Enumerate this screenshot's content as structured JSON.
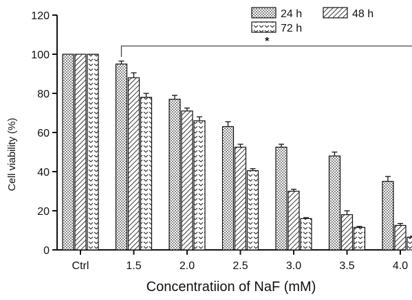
{
  "chart_data": {
    "type": "bar",
    "title": "",
    "xlabel": "Concentratiion of NaF (mM)",
    "ylabel": "Cell viability (%)",
    "ylim": [
      0,
      120
    ],
    "yticks": [
      "0",
      "20",
      "40",
      "60",
      "80",
      "100",
      "120"
    ],
    "categories": [
      "Ctrl",
      "1.5",
      "2.0",
      "2.5",
      "3.0",
      "3.5",
      "4.0"
    ],
    "series": [
      {
        "name": "24 h",
        "pattern": "dots",
        "values": [
          100,
          95,
          77,
          63,
          52.5,
          48,
          35
        ],
        "errors": [
          0,
          1.5,
          2,
          2.5,
          1.5,
          2,
          2.5
        ]
      },
      {
        "name": "48 h",
        "pattern": "hatch",
        "values": [
          100,
          88,
          71,
          52.5,
          30,
          18,
          12.5
        ],
        "errors": [
          0,
          2.5,
          1.5,
          1.5,
          1,
          2,
          1
        ]
      },
      {
        "name": "72 h",
        "pattern": "chevron",
        "values": [
          100,
          78,
          66,
          40.5,
          16,
          11.5,
          6.5
        ],
        "errors": [
          0,
          2,
          2,
          1,
          0.5,
          0.5,
          0.5
        ]
      }
    ],
    "legend": {
      "placement": "top-right"
    },
    "grid": false,
    "annotation": {
      "text": "*",
      "type": "significance-bracket",
      "from_category": "1.5",
      "to_category": "4.0"
    }
  }
}
